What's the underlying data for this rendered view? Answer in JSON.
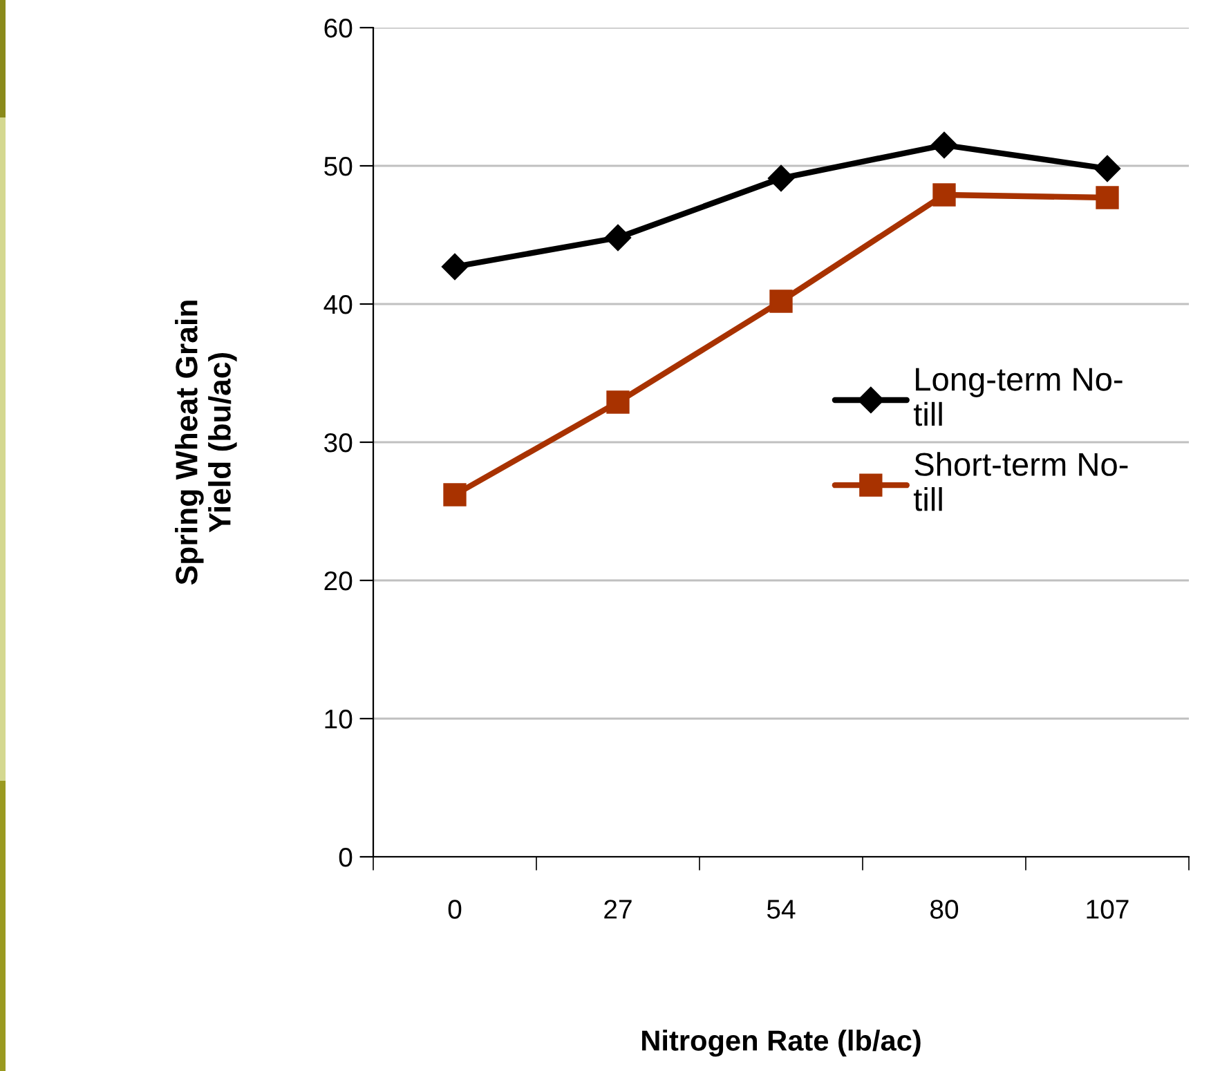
{
  "chart_data": {
    "type": "line",
    "xlabel": "Nitrogen Rate (lb/ac)",
    "ylabel": "Spring Wheat Grain\nYield (bu/ac)",
    "categories": [
      "0",
      "27",
      "54",
      "80",
      "107"
    ],
    "series": [
      {
        "name": "Long-term No-till",
        "color": "#000000",
        "marker": "diamond",
        "values": [
          42.7,
          44.8,
          49.1,
          51.5,
          49.8
        ]
      },
      {
        "name": "Short-term No-till",
        "color": "#a83200",
        "marker": "square",
        "values": [
          26.2,
          32.9,
          40.2,
          47.9,
          47.7
        ]
      }
    ],
    "ylim": [
      0,
      60
    ],
    "yticks": [
      0,
      10,
      20,
      30,
      40,
      50,
      60
    ],
    "grid": "y",
    "legend": "right",
    "line_style": "solid"
  }
}
